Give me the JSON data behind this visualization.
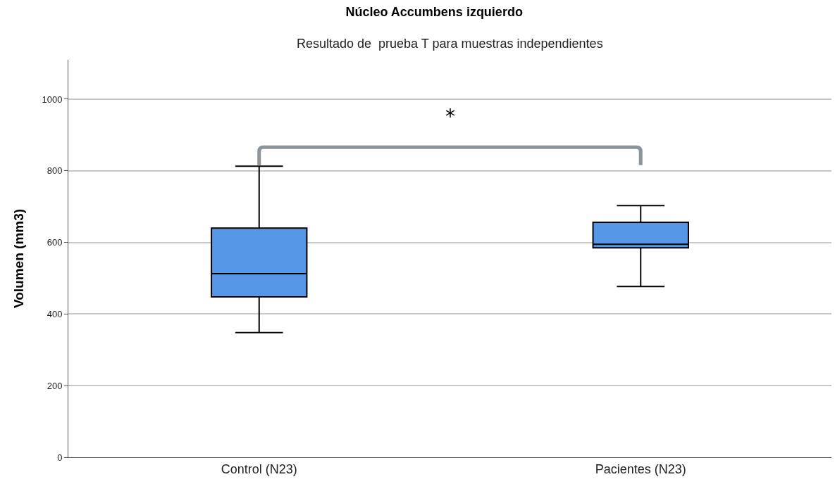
{
  "chart_data": {
    "type": "box",
    "title": "Núcleo Accumbens izquierdo",
    "subtitle": "Resultado de  prueba T para muestras independientes",
    "ylabel": "Volumen (mm3)",
    "categories": [
      "Control (N23)",
      "Pacientes (N23)"
    ],
    "series": [
      {
        "color": "#5596e6",
        "boxes": [
          {
            "low": 348,
            "q1": 448,
            "median": 513,
            "q3": 640,
            "high": 813
          },
          {
            "low": 477,
            "q1": 585,
            "median": 595,
            "q3": 656,
            "high": 703
          }
        ]
      }
    ],
    "ylim": [
      0,
      1110
    ],
    "yticks": [
      0,
      200,
      400,
      600,
      800,
      1000
    ],
    "grid": "y",
    "annotations": [
      "*"
    ]
  }
}
